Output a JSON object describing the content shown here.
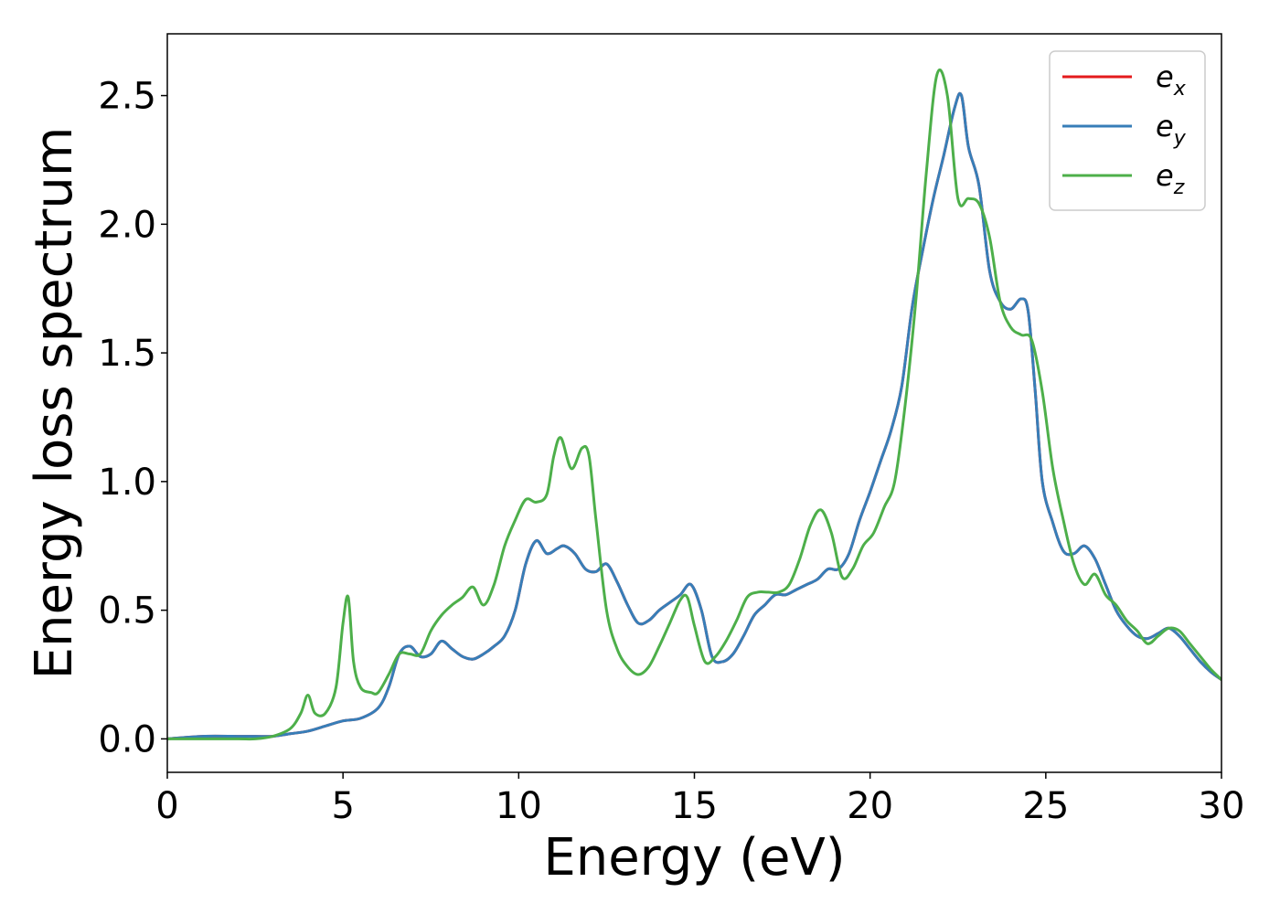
{
  "chart_data": {
    "type": "line",
    "title": "",
    "xlabel": "Energy (eV)",
    "ylabel": "Energy loss spectrum",
    "xlim": [
      0,
      30
    ],
    "ylim": [
      -0.13,
      2.74
    ],
    "xticks": [
      0,
      5,
      10,
      15,
      20,
      25,
      30
    ],
    "xtick_labels": [
      "0",
      "5",
      "10",
      "15",
      "20",
      "25",
      "30"
    ],
    "yticks": [
      0.0,
      0.5,
      1.0,
      1.5,
      2.0,
      2.5
    ],
    "ytick_labels": [
      "0.0",
      "0.5",
      "1.0",
      "1.5",
      "2.0",
      "2.5"
    ],
    "grid": false,
    "legend_position": "top-right",
    "series": [
      {
        "name": "e_x",
        "legend_base": "e",
        "legend_sub": "x",
        "color": "#e41a1c",
        "x": [
          0,
          1,
          2,
          2.5,
          3,
          3.5,
          4,
          4.5,
          5,
          5.5,
          6,
          6.3,
          6.6,
          6.9,
          7.2,
          7.5,
          7.8,
          8.1,
          8.4,
          8.7,
          9,
          9.3,
          9.6,
          9.9,
          10.2,
          10.5,
          10.8,
          11.1,
          11.3,
          11.6,
          11.9,
          12.2,
          12.5,
          12.8,
          13.1,
          13.4,
          13.7,
          14,
          14.3,
          14.6,
          14.9,
          15.2,
          15.5,
          15.8,
          16.1,
          16.4,
          16.7,
          17,
          17.3,
          17.6,
          17.9,
          18.2,
          18.5,
          18.8,
          19.1,
          19.4,
          19.7,
          20,
          20.3,
          20.6,
          20.9,
          21.2,
          21.5,
          21.8,
          22.1,
          22.4,
          22.6,
          22.8,
          23.1,
          23.4,
          23.7,
          24,
          24.3,
          24.5,
          24.7,
          24.9,
          25.2,
          25.5,
          25.8,
          26.1,
          26.4,
          26.7,
          27,
          27.3,
          27.6,
          27.9,
          28.2,
          28.5,
          28.8,
          29.1,
          29.4,
          29.7,
          30
        ],
        "y": [
          0,
          0.01,
          0.01,
          0.01,
          0.01,
          0.02,
          0.03,
          0.05,
          0.07,
          0.08,
          0.12,
          0.2,
          0.33,
          0.36,
          0.32,
          0.33,
          0.38,
          0.35,
          0.32,
          0.31,
          0.33,
          0.36,
          0.4,
          0.5,
          0.68,
          0.77,
          0.72,
          0.74,
          0.75,
          0.72,
          0.66,
          0.65,
          0.68,
          0.61,
          0.52,
          0.45,
          0.46,
          0.5,
          0.53,
          0.56,
          0.6,
          0.5,
          0.32,
          0.3,
          0.33,
          0.4,
          0.48,
          0.52,
          0.56,
          0.56,
          0.58,
          0.6,
          0.62,
          0.66,
          0.66,
          0.72,
          0.85,
          0.96,
          1.08,
          1.2,
          1.37,
          1.68,
          1.9,
          2.1,
          2.27,
          2.45,
          2.5,
          2.3,
          2.15,
          1.82,
          1.7,
          1.67,
          1.71,
          1.66,
          1.35,
          1.0,
          0.84,
          0.73,
          0.72,
          0.75,
          0.7,
          0.6,
          0.5,
          0.44,
          0.4,
          0.39,
          0.41,
          0.43,
          0.4,
          0.35,
          0.3,
          0.26,
          0.23
        ]
      },
      {
        "name": "e_y",
        "legend_base": "e",
        "legend_sub": "y",
        "color": "#377eb8",
        "x": [
          0,
          1,
          2,
          2.5,
          3,
          3.5,
          4,
          4.5,
          5,
          5.5,
          6,
          6.3,
          6.6,
          6.9,
          7.2,
          7.5,
          7.8,
          8.1,
          8.4,
          8.7,
          9,
          9.3,
          9.6,
          9.9,
          10.2,
          10.5,
          10.8,
          11.1,
          11.3,
          11.6,
          11.9,
          12.2,
          12.5,
          12.8,
          13.1,
          13.4,
          13.7,
          14,
          14.3,
          14.6,
          14.9,
          15.2,
          15.5,
          15.8,
          16.1,
          16.4,
          16.7,
          17,
          17.3,
          17.6,
          17.9,
          18.2,
          18.5,
          18.8,
          19.1,
          19.4,
          19.7,
          20,
          20.3,
          20.6,
          20.9,
          21.2,
          21.5,
          21.8,
          22.1,
          22.4,
          22.6,
          22.8,
          23.1,
          23.4,
          23.7,
          24,
          24.3,
          24.5,
          24.7,
          24.9,
          25.2,
          25.5,
          25.8,
          26.1,
          26.4,
          26.7,
          27,
          27.3,
          27.6,
          27.9,
          28.2,
          28.5,
          28.8,
          29.1,
          29.4,
          29.7,
          30
        ],
        "y": [
          0,
          0.01,
          0.01,
          0.01,
          0.01,
          0.02,
          0.03,
          0.05,
          0.07,
          0.08,
          0.12,
          0.2,
          0.33,
          0.36,
          0.32,
          0.33,
          0.38,
          0.35,
          0.32,
          0.31,
          0.33,
          0.36,
          0.4,
          0.5,
          0.68,
          0.77,
          0.72,
          0.74,
          0.75,
          0.72,
          0.66,
          0.65,
          0.68,
          0.61,
          0.52,
          0.45,
          0.46,
          0.5,
          0.53,
          0.56,
          0.6,
          0.5,
          0.32,
          0.3,
          0.33,
          0.4,
          0.48,
          0.52,
          0.56,
          0.56,
          0.58,
          0.6,
          0.62,
          0.66,
          0.66,
          0.72,
          0.85,
          0.96,
          1.08,
          1.2,
          1.37,
          1.68,
          1.9,
          2.1,
          2.27,
          2.45,
          2.5,
          2.3,
          2.15,
          1.82,
          1.7,
          1.67,
          1.71,
          1.66,
          1.35,
          1.0,
          0.84,
          0.73,
          0.72,
          0.75,
          0.7,
          0.6,
          0.5,
          0.44,
          0.4,
          0.39,
          0.41,
          0.43,
          0.4,
          0.35,
          0.3,
          0.26,
          0.23
        ]
      },
      {
        "name": "e_z",
        "legend_base": "e",
        "legend_sub": "z",
        "color": "#4daf4a",
        "x": [
          0,
          1,
          2,
          2.5,
          3,
          3.5,
          3.8,
          4,
          4.2,
          4.5,
          4.8,
          5,
          5.15,
          5.3,
          5.5,
          5.8,
          6,
          6.3,
          6.6,
          6.9,
          7.2,
          7.5,
          7.8,
          8.1,
          8.4,
          8.7,
          9,
          9.3,
          9.6,
          9.9,
          10.2,
          10.5,
          10.8,
          11,
          11.2,
          11.5,
          11.8,
          12,
          12.2,
          12.5,
          12.8,
          13.1,
          13.4,
          13.7,
          14,
          14.3,
          14.6,
          14.8,
          15,
          15.3,
          15.6,
          15.9,
          16.2,
          16.5,
          16.8,
          17.1,
          17.4,
          17.7,
          18,
          18.3,
          18.6,
          18.9,
          19.2,
          19.5,
          19.8,
          20.1,
          20.4,
          20.7,
          21,
          21.3,
          21.6,
          21.9,
          22.2,
          22.5,
          22.8,
          23.1,
          23.4,
          23.7,
          24,
          24.3,
          24.6,
          24.9,
          25.2,
          25.5,
          25.8,
          26.1,
          26.4,
          26.7,
          27,
          27.3,
          27.6,
          27.9,
          28.2,
          28.5,
          28.8,
          29.1,
          29.4,
          29.7,
          30
        ],
        "y": [
          0,
          0.0,
          0.0,
          0.0,
          0.01,
          0.04,
          0.1,
          0.17,
          0.1,
          0.1,
          0.2,
          0.45,
          0.55,
          0.3,
          0.2,
          0.18,
          0.18,
          0.25,
          0.33,
          0.33,
          0.33,
          0.42,
          0.48,
          0.52,
          0.55,
          0.59,
          0.52,
          0.6,
          0.75,
          0.85,
          0.93,
          0.92,
          0.95,
          1.1,
          1.17,
          1.05,
          1.13,
          1.1,
          0.85,
          0.5,
          0.35,
          0.28,
          0.25,
          0.28,
          0.36,
          0.45,
          0.54,
          0.55,
          0.44,
          0.3,
          0.32,
          0.38,
          0.46,
          0.55,
          0.57,
          0.57,
          0.57,
          0.6,
          0.7,
          0.83,
          0.89,
          0.8,
          0.63,
          0.66,
          0.75,
          0.8,
          0.9,
          1.0,
          1.3,
          1.7,
          2.2,
          2.58,
          2.5,
          2.1,
          2.1,
          2.08,
          1.95,
          1.7,
          1.6,
          1.57,
          1.55,
          1.35,
          1.05,
          0.85,
          0.68,
          0.6,
          0.64,
          0.56,
          0.52,
          0.46,
          0.42,
          0.37,
          0.4,
          0.43,
          0.42,
          0.37,
          0.32,
          0.27,
          0.23
        ]
      }
    ]
  }
}
